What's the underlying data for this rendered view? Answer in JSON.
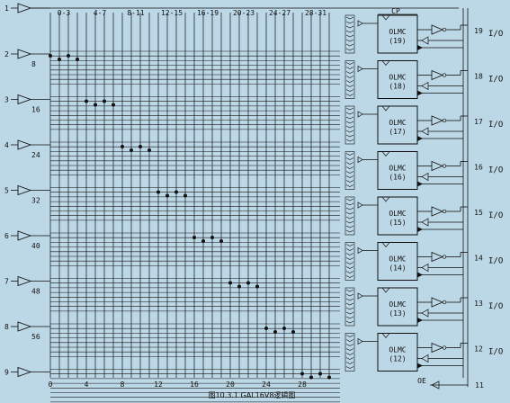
{
  "background": "#bcd7e6",
  "ink": "#111111",
  "column_groups": [
    "0-3",
    "4-7",
    "8-11",
    "12-15",
    "16-19",
    "20-23",
    "24-27",
    "28-31"
  ],
  "pin_inputs": [
    "1",
    "2",
    "3",
    "4",
    "5",
    "6",
    "7",
    "8",
    "9"
  ],
  "row_numbers": [
    "8",
    "16",
    "24",
    "32",
    "40",
    "48",
    "56"
  ],
  "bottom_numbers": [
    "0",
    "4",
    "8",
    "12",
    "16",
    "20",
    "24",
    "28"
  ],
  "olmc_label": "OLMC",
  "olmcs": [
    {
      "num": "(19)",
      "pin": "19",
      "io": "I/O"
    },
    {
      "num": "(18)",
      "pin": "18",
      "io": "I/O"
    },
    {
      "num": "(17)",
      "pin": "17",
      "io": "I/O"
    },
    {
      "num": "(16)",
      "pin": "16",
      "io": "I/O"
    },
    {
      "num": "(15)",
      "pin": "15",
      "io": "I/O"
    },
    {
      "num": "(14)",
      "pin": "14",
      "io": "I/O"
    },
    {
      "num": "(13)",
      "pin": "13",
      "io": "I/O"
    },
    {
      "num": "(12)",
      "pin": "12",
      "io": "I/O"
    }
  ],
  "cp_label": "CP",
  "oe_label": "OE",
  "pin11": "11",
  "caption": "图10.3.1    GAL16V8逻辑图"
}
